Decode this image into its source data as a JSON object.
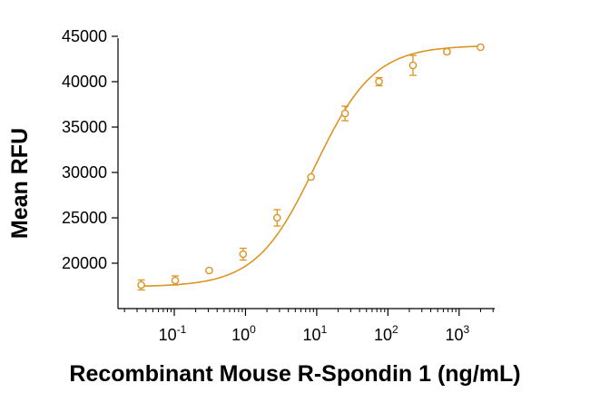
{
  "chart_data": {
    "type": "scatter",
    "title": "",
    "xlabel": "Recombinant Mouse R-Spondin 1 (ng/mL)",
    "ylabel": "Mean RFU",
    "x_scale": "log",
    "xlim": [
      0.0162,
      3160
    ],
    "ylim": [
      15000,
      45000
    ],
    "y_ticks": [
      20000,
      25000,
      30000,
      35000,
      40000,
      45000
    ],
    "y_tick_labels": [
      "20000",
      "25000",
      "30000",
      "35000",
      "40000",
      "45000"
    ],
    "x_ticks": [
      {
        "value": 0.1,
        "base": "10",
        "exp": "-1"
      },
      {
        "value": 1,
        "base": "10",
        "exp": "0"
      },
      {
        "value": 10,
        "base": "10",
        "exp": "1"
      },
      {
        "value": 100,
        "base": "10",
        "exp": "2"
      },
      {
        "value": 1000,
        "base": "10",
        "exp": "3"
      }
    ],
    "color": "#dc9423",
    "points": [
      {
        "x": 0.0343,
        "y": 17600,
        "err": 550
      },
      {
        "x": 0.103,
        "y": 18100,
        "err": 500
      },
      {
        "x": 0.309,
        "y": 19200,
        "err": 150
      },
      {
        "x": 0.926,
        "y": 21000,
        "err": 650
      },
      {
        "x": 2.78,
        "y": 25000,
        "err": 900
      },
      {
        "x": 8.33,
        "y": 29500,
        "err": 0
      },
      {
        "x": 25,
        "y": 36500,
        "err": 800
      },
      {
        "x": 75,
        "y": 40000,
        "err": 450
      },
      {
        "x": 225,
        "y": 41800,
        "err": 1100
      },
      {
        "x": 675,
        "y": 43300,
        "err": 200
      },
      {
        "x": 2000,
        "y": 43800,
        "err": 0
      }
    ],
    "fit": {
      "bottom": 17400,
      "top": 44000,
      "ec50": 9.5,
      "hill": 1.05
    },
    "grid": false,
    "legend": "none"
  }
}
